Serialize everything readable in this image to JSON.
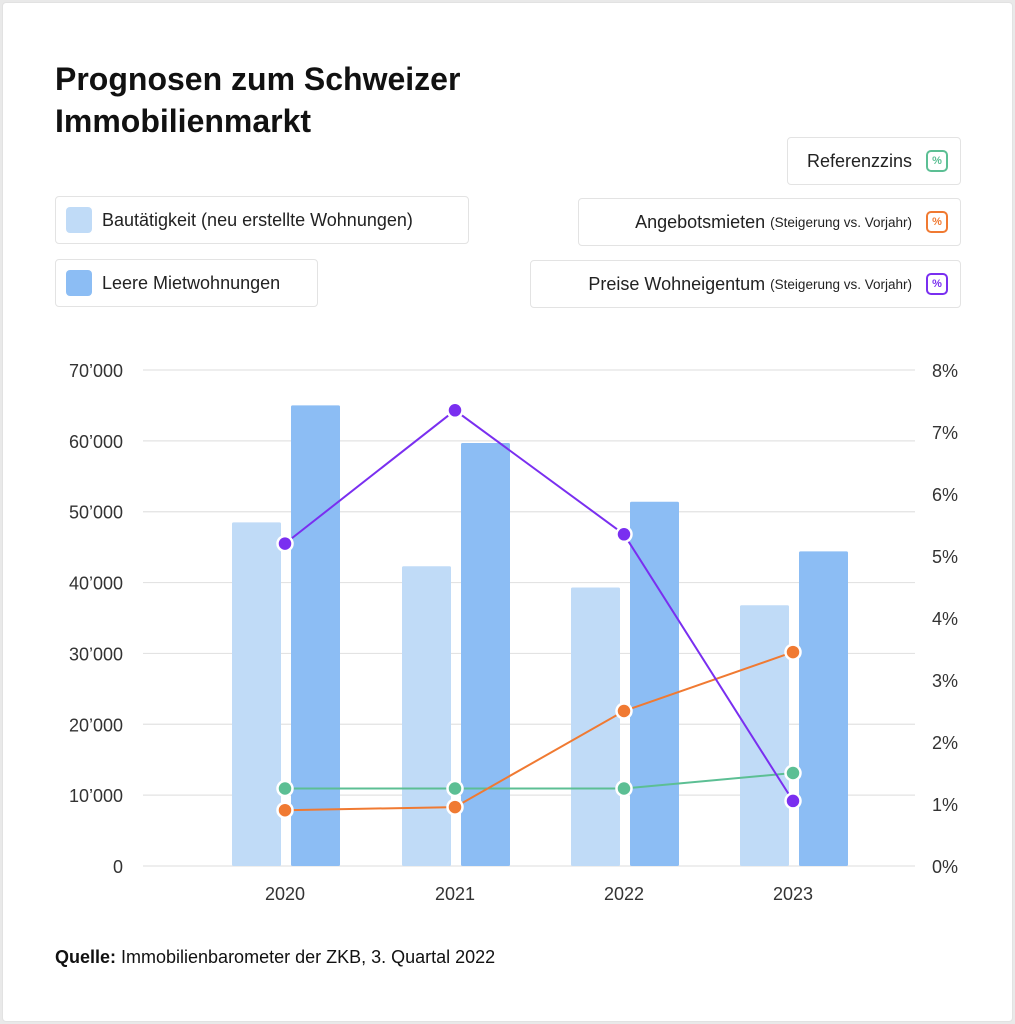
{
  "title": "Prognosen zum Schweizer\nImmobilienmarkt",
  "source": {
    "label": "Quelle:",
    "text": " Immobilienbarometer der ZKB, 3. Quartal 2022"
  },
  "legend": {
    "bau": {
      "label": "Bautätigkeit (neu erstellte Wohnungen)",
      "color": "#c0dbf7"
    },
    "leer": {
      "label": "Leere Mietwohnungen",
      "color": "#8cbdf4"
    },
    "ref": {
      "label": "Referenzzins",
      "note": "",
      "icon": "%",
      "color": "#5cbf94"
    },
    "miet": {
      "label": "Angebotsmieten",
      "note": "(Steigerung vs. Vorjahr)",
      "icon": "%",
      "color": "#f07a32"
    },
    "preise": {
      "label": "Preise Wohneigentum",
      "note": "(Steigerung vs. Vorjahr)",
      "icon": "%",
      "color": "#7a2ff0"
    }
  },
  "chart_data": {
    "type": "bar",
    "categories": [
      "2020",
      "2021",
      "2022",
      "2023"
    ],
    "left_axis": {
      "ylim": [
        0,
        70000
      ],
      "ticks": [
        "0",
        "10’000",
        "20’000",
        "30’000",
        "40’000",
        "50’000",
        "60’000",
        "70’000"
      ]
    },
    "right_axis": {
      "ylim": [
        0,
        8
      ],
      "ticks": [
        "0%",
        "1%",
        "2%",
        "3%",
        "4%",
        "5%",
        "6%",
        "7%",
        "8%"
      ]
    },
    "bar_series": [
      {
        "name": "Bautätigkeit (neu erstellte Wohnungen)",
        "values": [
          48500,
          42300,
          39300,
          36800
        ],
        "color": "#c0dbf7"
      },
      {
        "name": "Leere Mietwohnungen",
        "values": [
          65000,
          59700,
          51400,
          44400
        ],
        "color": "#8cbdf4"
      }
    ],
    "line_series": [
      {
        "name": "Referenzzins",
        "values": [
          1.25,
          1.25,
          1.25,
          1.5
        ],
        "color": "#5cbf94"
      },
      {
        "name": "Angebotsmieten",
        "values": [
          0.9,
          0.95,
          2.5,
          3.45
        ],
        "color": "#f07a32"
      },
      {
        "name": "Preise Wohneigentum",
        "values": [
          5.2,
          7.35,
          5.35,
          1.05
        ],
        "color": "#7a2ff0"
      }
    ],
    "grid": true
  }
}
